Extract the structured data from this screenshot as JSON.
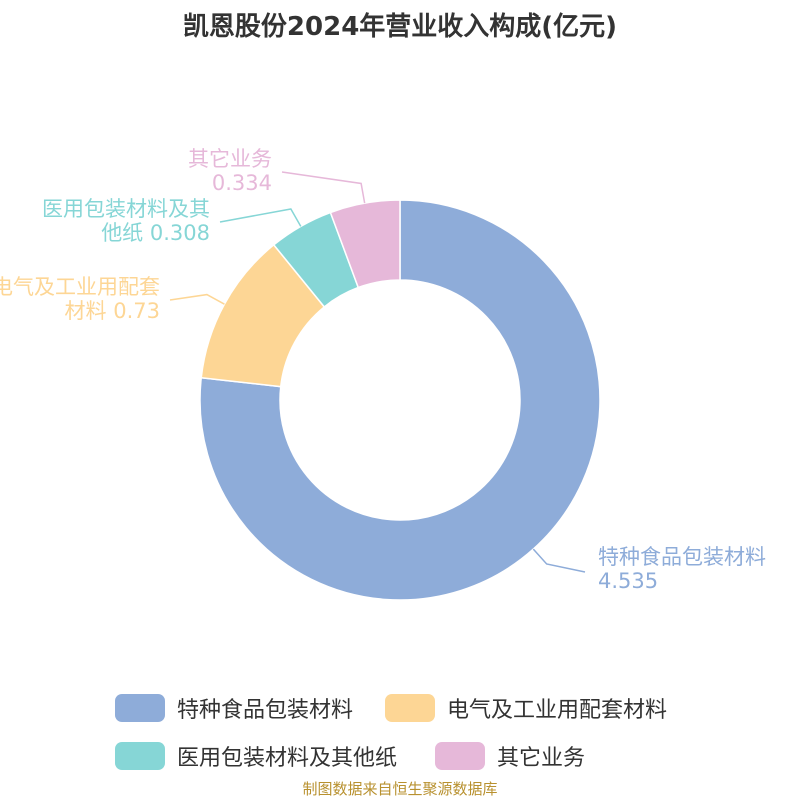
{
  "chart_data": {
    "type": "pie",
    "donut": true,
    "title": "凯恩股份2024年营业收入构成(亿元)",
    "categories": [
      "特种食品包装材料",
      "电气及工业用配套材料",
      "医用包装材料及其他纸",
      "其它业务"
    ],
    "values": [
      4.535,
      0.73,
      0.308,
      0.334
    ],
    "colors": [
      "#8eacd9",
      "#fdd695",
      "#86d6d6",
      "#e6b8d9"
    ],
    "source": "制图数据来自恒生聚源数据库"
  }
}
